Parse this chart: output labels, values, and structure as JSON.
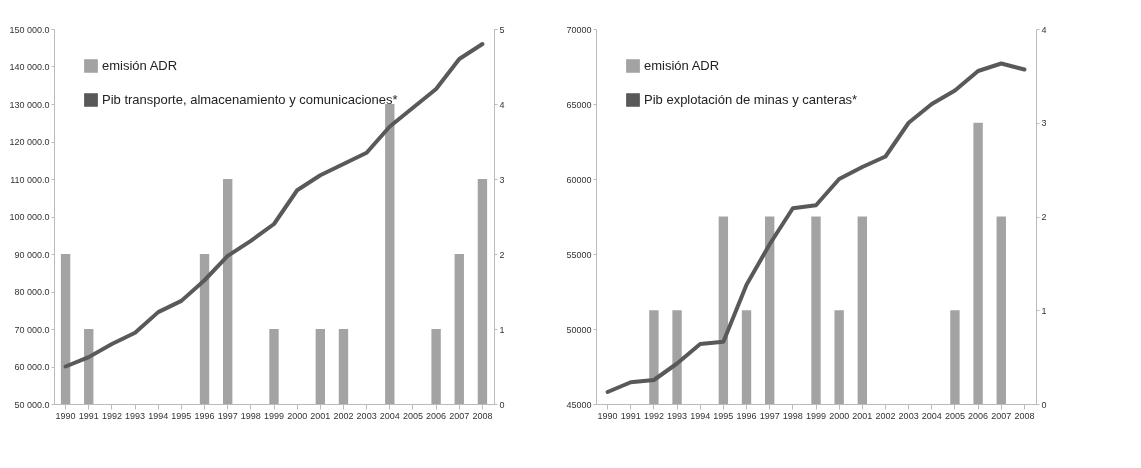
{
  "chart_data": [
    {
      "type": "bar",
      "categories": [
        "1990",
        "1991",
        "1992",
        "1993",
        "1994",
        "1995",
        "1996",
        "1997",
        "1998",
        "1999",
        "2000",
        "2001",
        "2002",
        "2003",
        "2004",
        "2005",
        "2006",
        "2007",
        "2008"
      ],
      "series": [
        {
          "name": "emisión ADR",
          "axis": "y2",
          "color": "#a3a3a3",
          "values": [
            2,
            1,
            0,
            0,
            0,
            0,
            2,
            3,
            0,
            1,
            0,
            1,
            1,
            0,
            4,
            0,
            1,
            2,
            3
          ]
        },
        {
          "name": "Pib transporte, almacenamiento y comunicaciones*",
          "type": "line",
          "color": "#595959",
          "values": [
            60000,
            62500,
            66000,
            69000,
            74500,
            77500,
            83000,
            89500,
            93500,
            98000,
            107000,
            111000,
            114000,
            117000,
            124000,
            129000,
            134000,
            142000,
            146000
          ]
        }
      ],
      "ylim": [
        50000,
        150000
      ],
      "yticks": [
        {
          "value": 50000,
          "label": "50 000.0"
        },
        {
          "value": 60000,
          "label": "60 000.0"
        },
        {
          "value": 70000,
          "label": "70 000.0"
        },
        {
          "value": 80000,
          "label": "80 000.0"
        },
        {
          "value": 90000,
          "label": "90 000.0"
        },
        {
          "value": 100000,
          "label": "100 000.0"
        },
        {
          "value": 110000,
          "label": "110 000.0"
        },
        {
          "value": 120000,
          "label": "120 000.0"
        },
        {
          "value": 130000,
          "label": "130 000.0"
        },
        {
          "value": 140000,
          "label": "140 000.0"
        },
        {
          "value": 150000,
          "label": "150 000.0"
        }
      ],
      "y2lim": [
        0,
        5
      ],
      "y2ticks": [
        0,
        1,
        2,
        3,
        4,
        5
      ],
      "grid": false,
      "legend": "top left"
    },
    {
      "type": "bar",
      "categories": [
        "1990",
        "1991",
        "1992",
        "1993",
        "1994",
        "1995",
        "1996",
        "1997",
        "1998",
        "1999",
        "2000",
        "2001",
        "2002",
        "2003",
        "2004",
        "2005",
        "2006",
        "2007",
        "2008"
      ],
      "series": [
        {
          "name": "emisión ADR",
          "axis": "y2",
          "color": "#a3a3a3",
          "values": [
            0,
            0,
            1,
            1,
            0,
            2,
            1,
            2,
            0,
            2,
            1,
            2,
            0,
            0,
            0,
            1,
            3,
            2,
            0
          ]
        },
        {
          "name": "Pib explotación de minas y canteras*",
          "type": "line",
          "color": "#595959",
          "values": [
            45800,
            46450,
            46600,
            47700,
            49000,
            49150,
            52950,
            55650,
            58050,
            58250,
            60000,
            60800,
            61500,
            63750,
            65000,
            65900,
            67200,
            67700,
            67300
          ]
        }
      ],
      "ylim": [
        45000,
        70000
      ],
      "yticks": [
        45000,
        50000,
        55000,
        60000,
        65000,
        70000
      ],
      "y2lim": [
        0,
        4
      ],
      "y2ticks": [
        0,
        1,
        2,
        3,
        4
      ],
      "grid": false,
      "legend": "top left"
    }
  ]
}
